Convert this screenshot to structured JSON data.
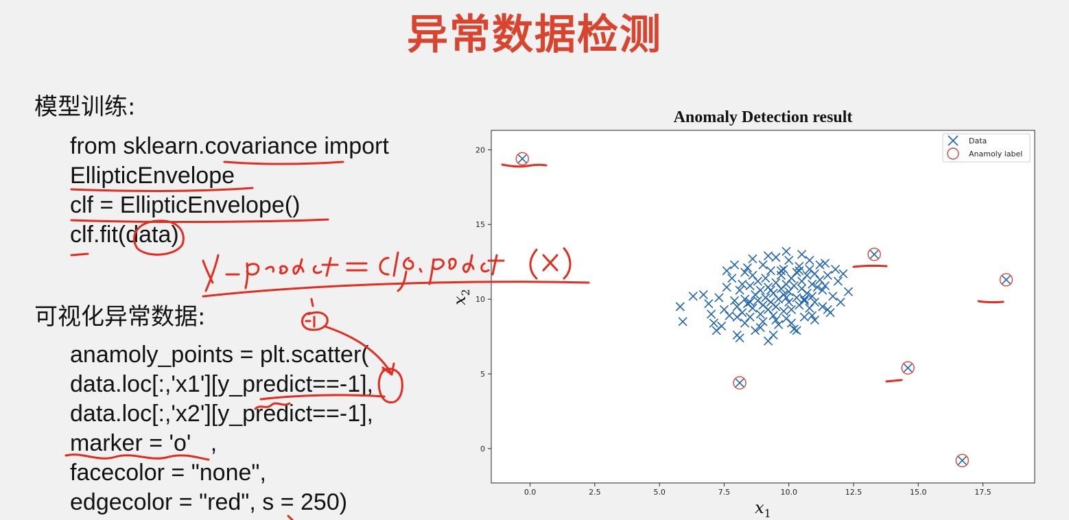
{
  "slide": {
    "title": "异常数据检测",
    "section1_heading": "模型训练:",
    "section1_code": [
      "from sklearn.covariance import",
      "EllipticEnvelope",
      "clf = EllipticEnvelope()",
      "clf.fit(data)"
    ],
    "section2_heading": "可视化异常数据:",
    "section2_code": [
      "anamoly_points = plt.scatter(",
      "data.loc[:,'x1'][y_predict==-1],",
      "data.loc[:,'x2'][y_predict==-1],",
      "marker = 'o'   ,",
      "facecolor = \"none\",",
      "edgecolor = \"red\", s = 250)"
    ],
    "annotation_colour": "#e52b1e"
  },
  "chart_data": {
    "type": "scatter",
    "title": "Anomaly Detection result",
    "xlabel": "x1",
    "ylabel": "x2",
    "xlim": [
      -1.5,
      19.5
    ],
    "ylim": [
      -2.3,
      21.3
    ],
    "xticks": [
      "0.0",
      "2.5",
      "5.0",
      "7.5",
      "10.0",
      "12.5",
      "15.0",
      "17.5"
    ],
    "yticks": [
      "0",
      "5",
      "10",
      "15",
      "20"
    ],
    "grid": false,
    "legend_position": "upper right",
    "series": [
      {
        "name": "Data",
        "marker": "x",
        "color": "#1f63b4",
        "points": [
          [
            5.8,
            9.5
          ],
          [
            5.9,
            8.5
          ],
          [
            6.3,
            10.2
          ],
          [
            6.9,
            9.7
          ],
          [
            7.1,
            8.4
          ],
          [
            7.2,
            7.9
          ],
          [
            7.3,
            10.1
          ],
          [
            7.5,
            9.3
          ],
          [
            7.6,
            10.8
          ],
          [
            7.7,
            8.9
          ],
          [
            7.8,
            11.4
          ],
          [
            7.9,
            9.9
          ],
          [
            8.0,
            7.6
          ],
          [
            8.0,
            9.5
          ],
          [
            8.1,
            10.6
          ],
          [
            8.2,
            9.1
          ],
          [
            8.2,
            11.0
          ],
          [
            8.3,
            8.4
          ],
          [
            8.3,
            10.0
          ],
          [
            8.4,
            9.7
          ],
          [
            8.5,
            10.9
          ],
          [
            8.5,
            8.8
          ],
          [
            8.6,
            11.6
          ],
          [
            8.6,
            9.4
          ],
          [
            8.7,
            10.3
          ],
          [
            8.7,
            7.9
          ],
          [
            8.8,
            9.9
          ],
          [
            8.8,
            11.2
          ],
          [
            8.9,
            9.0
          ],
          [
            8.9,
            10.6
          ],
          [
            9.0,
            12.3
          ],
          [
            9.0,
            9.6
          ],
          [
            9.0,
            8.5
          ],
          [
            9.1,
            10.1
          ],
          [
            9.1,
            11.4
          ],
          [
            9.2,
            9.3
          ],
          [
            9.2,
            10.8
          ],
          [
            9.2,
            7.2
          ],
          [
            9.3,
            9.8
          ],
          [
            9.3,
            11.9
          ],
          [
            9.4,
            10.4
          ],
          [
            9.4,
            8.9
          ],
          [
            9.5,
            11.1
          ],
          [
            9.5,
            9.5
          ],
          [
            9.5,
            12.8
          ],
          [
            9.6,
            10.0
          ],
          [
            9.6,
            8.3
          ],
          [
            9.7,
            10.7
          ],
          [
            9.7,
            11.6
          ],
          [
            9.8,
            9.2
          ],
          [
            9.8,
            12.0
          ],
          [
            9.8,
            10.3
          ],
          [
            9.9,
            8.7
          ],
          [
            9.9,
            11.0
          ],
          [
            10.0,
            9.8
          ],
          [
            10.0,
            12.6
          ],
          [
            10.0,
            10.5
          ],
          [
            10.1,
            11.4
          ],
          [
            10.1,
            9.3
          ],
          [
            10.2,
            10.9
          ],
          [
            10.2,
            8.0
          ],
          [
            10.3,
            11.8
          ],
          [
            10.3,
            10.1
          ],
          [
            10.4,
            9.6
          ],
          [
            10.4,
            12.2
          ],
          [
            10.5,
            10.7
          ],
          [
            10.5,
            11.2
          ],
          [
            10.6,
            9.9
          ],
          [
            10.6,
            8.8
          ],
          [
            10.7,
            11.6
          ],
          [
            10.7,
            10.4
          ],
          [
            10.8,
            12.0
          ],
          [
            10.8,
            9.4
          ],
          [
            10.9,
            11.0
          ],
          [
            10.9,
            10.2
          ],
          [
            11.0,
            11.7
          ],
          [
            11.0,
            9.8
          ],
          [
            11.1,
            10.8
          ],
          [
            11.2,
            11.3
          ],
          [
            11.3,
            9.5
          ],
          [
            11.4,
            10.9
          ],
          [
            11.5,
            11.6
          ],
          [
            11.7,
            10.2
          ],
          [
            11.9,
            11.2
          ],
          [
            12.3,
            10.5
          ],
          [
            7.4,
            8.2
          ],
          [
            8.1,
            7.4
          ],
          [
            9.4,
            7.6
          ],
          [
            10.3,
            7.9
          ],
          [
            11.0,
            8.6
          ],
          [
            11.6,
            9.1
          ],
          [
            12.0,
            9.8
          ],
          [
            8.4,
            12.1
          ],
          [
            9.9,
            13.2
          ],
          [
            10.8,
            12.6
          ],
          [
            11.4,
            12.4
          ],
          [
            7.0,
            9.0
          ],
          [
            6.7,
            10.3
          ],
          [
            7.9,
            12.3
          ],
          [
            8.6,
            12.7
          ],
          [
            9.2,
            12.9
          ],
          [
            10.5,
            13.0
          ],
          [
            11.8,
            12.0
          ],
          [
            12.1,
            11.7
          ],
          [
            8.9,
            8.1
          ],
          [
            9.5,
            8.6
          ],
          [
            10.1,
            8.4
          ],
          [
            10.9,
            8.9
          ],
          [
            11.5,
            9.3
          ],
          [
            7.6,
            11.9
          ],
          [
            8.3,
            11.8
          ],
          [
            9.7,
            11.9
          ],
          [
            10.4,
            11.9
          ],
          [
            11.2,
            12.3
          ],
          [
            8.0,
            8.8
          ],
          [
            8.5,
            9.8
          ],
          [
            9.3,
            10.6
          ],
          [
            9.9,
            10.1
          ],
          [
            10.6,
            10.0
          ],
          [
            11.3,
            10.6
          ],
          [
            -0.3,
            19.4
          ],
          [
            8.1,
            4.4
          ],
          [
            13.3,
            13.0
          ],
          [
            14.6,
            5.4
          ],
          [
            16.7,
            -0.8
          ],
          [
            18.4,
            11.3
          ]
        ]
      },
      {
        "name": "Anamoly label",
        "marker": "o",
        "color": "#e0412f",
        "points": [
          [
            -0.3,
            19.4
          ],
          [
            8.1,
            4.4
          ],
          [
            13.3,
            13.0
          ],
          [
            14.6,
            5.4
          ],
          [
            16.7,
            -0.8
          ],
          [
            18.4,
            11.3
          ]
        ]
      }
    ]
  }
}
